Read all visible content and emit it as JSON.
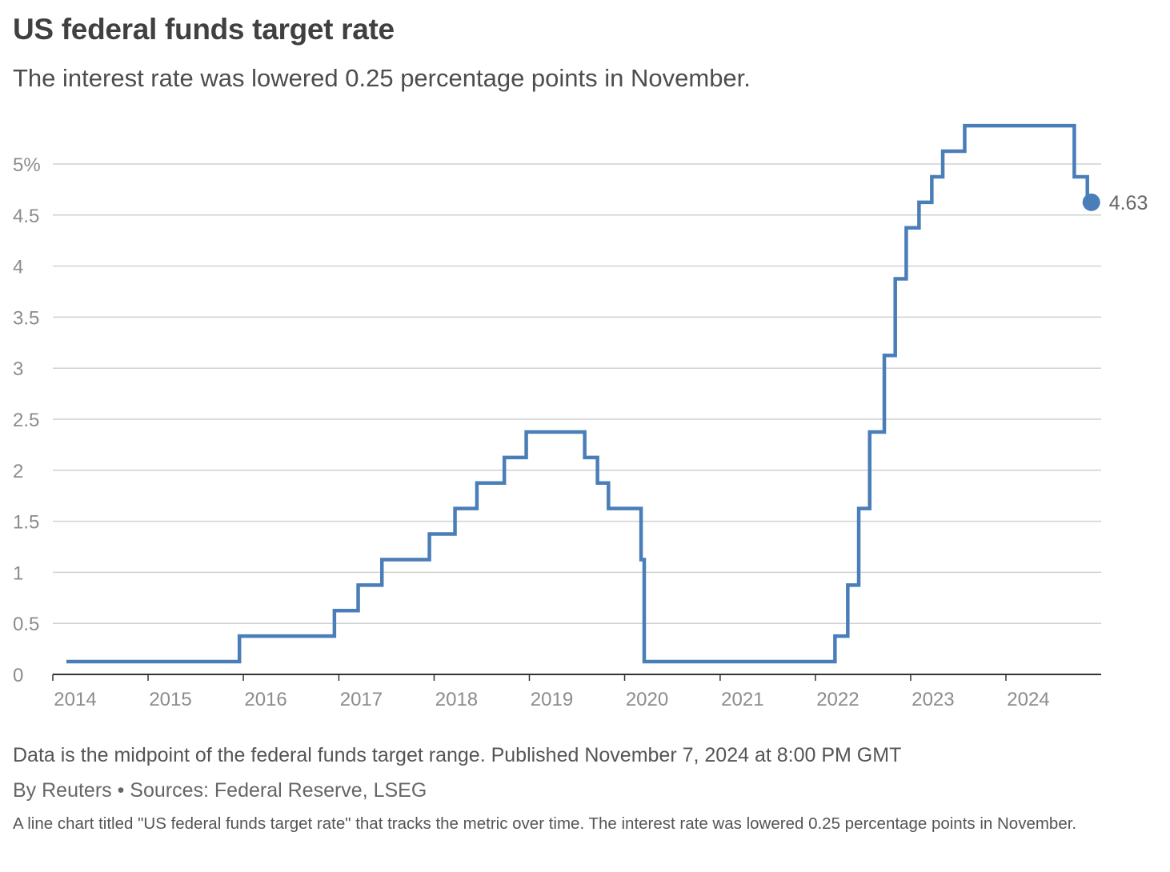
{
  "header": {
    "title": "US federal funds target rate",
    "subtitle": "The interest rate was lowered 0.25 percentage points in November."
  },
  "footer": {
    "note": "Data is the midpoint of the federal funds target range. Published November 7, 2024 at 8:00 PM GMT",
    "byline": "By Reuters • Sources: Federal Reserve, LSEG",
    "alt_text": "A line chart titled \"US federal funds target rate\" that tracks the metric over time. The interest rate was lowered 0.25 percentage points in November."
  },
  "colors": {
    "line": "#4a7eb8",
    "grid": "#d0d0d0",
    "axis": "#333333"
  },
  "chart_data": {
    "type": "line",
    "step": true,
    "title": "US federal funds target rate",
    "subtitle": "The interest rate was lowered 0.25 percentage points in November.",
    "xlabel": "",
    "ylabel": "",
    "ylim": [
      0,
      5.5
    ],
    "xlim": [
      "2014-01-01",
      "2024-12-31"
    ],
    "y_ticks": [
      0,
      0.5,
      1,
      1.5,
      2,
      2.5,
      3,
      3.5,
      4,
      4.5,
      5
    ],
    "y_tick_labels": [
      "0",
      "0.5",
      "1",
      "1.5",
      "2",
      "2.5",
      "3",
      "3.5",
      "4",
      "4.5",
      "5%"
    ],
    "x_ticks": [
      "2014-01-01",
      "2015-01-01",
      "2016-01-01",
      "2017-01-01",
      "2018-01-01",
      "2019-01-01",
      "2020-01-01",
      "2021-01-01",
      "2022-01-01",
      "2023-01-01",
      "2024-01-01"
    ],
    "x_tick_labels": [
      "2014",
      "2015",
      "2016",
      "2017",
      "2018",
      "2019",
      "2020",
      "2021",
      "2022",
      "2023",
      "2024"
    ],
    "grid": true,
    "end_label": "4.63",
    "series": [
      {
        "points": [
          {
            "date": "2014-01-01",
            "value": 0.125
          },
          {
            "date": "2015-12-17",
            "value": 0.375
          },
          {
            "date": "2016-12-15",
            "value": 0.625
          },
          {
            "date": "2017-03-16",
            "value": 0.875
          },
          {
            "date": "2017-06-15",
            "value": 1.125
          },
          {
            "date": "2017-12-14",
            "value": 1.375
          },
          {
            "date": "2018-03-22",
            "value": 1.625
          },
          {
            "date": "2018-06-14",
            "value": 1.875
          },
          {
            "date": "2018-09-27",
            "value": 2.125
          },
          {
            "date": "2018-12-20",
            "value": 2.375
          },
          {
            "date": "2019-08-01",
            "value": 2.125
          },
          {
            "date": "2019-09-19",
            "value": 1.875
          },
          {
            "date": "2019-10-31",
            "value": 1.625
          },
          {
            "date": "2020-03-04",
            "value": 1.125
          },
          {
            "date": "2020-03-16",
            "value": 0.125
          },
          {
            "date": "2022-03-17",
            "value": 0.375
          },
          {
            "date": "2022-05-05",
            "value": 0.875
          },
          {
            "date": "2022-06-16",
            "value": 1.625
          },
          {
            "date": "2022-07-28",
            "value": 2.375
          },
          {
            "date": "2022-09-22",
            "value": 3.125
          },
          {
            "date": "2022-11-03",
            "value": 3.875
          },
          {
            "date": "2022-12-15",
            "value": 4.375
          },
          {
            "date": "2023-02-02",
            "value": 4.625
          },
          {
            "date": "2023-03-23",
            "value": 4.875
          },
          {
            "date": "2023-05-04",
            "value": 5.125
          },
          {
            "date": "2023-07-27",
            "value": 5.375
          },
          {
            "date": "2024-09-19",
            "value": 4.875
          },
          {
            "date": "2024-11-08",
            "value": 4.625
          }
        ]
      }
    ]
  }
}
